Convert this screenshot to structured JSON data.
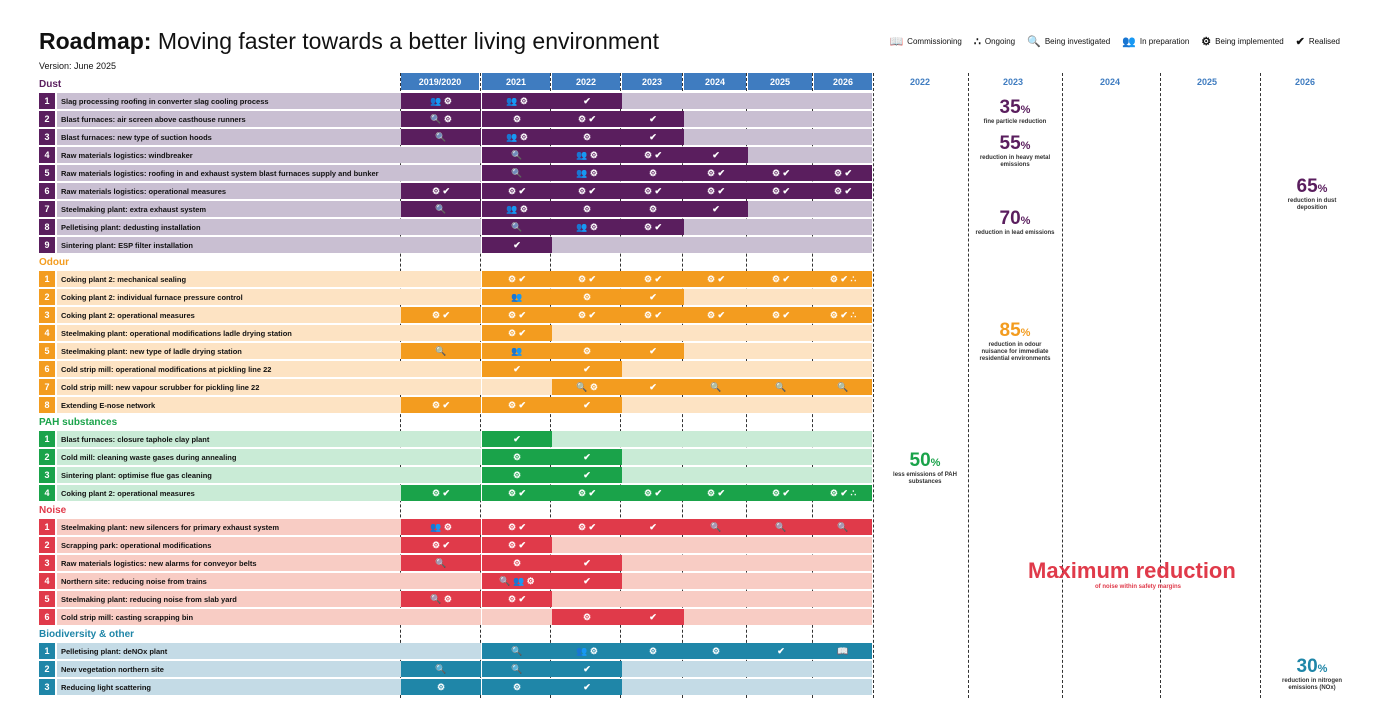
{
  "title_bold": "Roadmap:",
  "title_rest": " Moving faster towards a better living environment",
  "version": "Version: June 2025",
  "legend": [
    {
      "icon": "book-icon",
      "glyph": "📖",
      "label": "Commissioning"
    },
    {
      "icon": "ongoing-icon",
      "glyph": "∴",
      "label": "Ongoing"
    },
    {
      "icon": "search-icon",
      "glyph": "🔍",
      "label": "Being investigated"
    },
    {
      "icon": "people-icon",
      "glyph": "👥",
      "label": "In preparation"
    },
    {
      "icon": "gears-icon",
      "glyph": "⚙",
      "label": "Being implemented"
    },
    {
      "icon": "check-icon",
      "glyph": "✔",
      "label": "Realised"
    }
  ],
  "years": [
    "2019/2020",
    "2021",
    "2022",
    "2023",
    "2024",
    "2025",
    "2026"
  ],
  "right_years": [
    "2022",
    "2023",
    "2024",
    "2025",
    "2026"
  ],
  "sections": [
    {
      "name": "Dust",
      "color": "#5a1e5e",
      "light": "#c9bfd2",
      "items": [
        {
          "n": "1",
          "label": "Slag processing roofing in converter slag cooling process",
          "cells": [
            1,
            1,
            1,
            0,
            0,
            0,
            0
          ],
          "marks": [
            "👥 ⚙",
            "👥 ⚙",
            "✔",
            "",
            "",
            "",
            ""
          ]
        },
        {
          "n": "2",
          "label": "Blast furnaces: air screen above casthouse runners",
          "cells": [
            1,
            1,
            1,
            1,
            0,
            0,
            0
          ],
          "marks": [
            "🔍 ⚙",
            "⚙",
            "⚙ ✔",
            "✔",
            "",
            "",
            ""
          ]
        },
        {
          "n": "3",
          "label": "Blast furnaces: new type of suction hoods",
          "cells": [
            1,
            1,
            1,
            1,
            0,
            0,
            0
          ],
          "marks": [
            "🔍",
            "👥 ⚙",
            "⚙",
            "✔",
            "",
            "",
            ""
          ]
        },
        {
          "n": "4",
          "label": "Raw materials logistics: windbreaker",
          "cells": [
            0,
            1,
            1,
            1,
            1,
            0,
            0
          ],
          "marks": [
            "",
            "🔍",
            "👥 ⚙",
            "⚙ ✔",
            "✔",
            "",
            ""
          ]
        },
        {
          "n": "5",
          "label": "Raw materials logistics: roofing in and exhaust system blast furnaces supply and bunker",
          "cells": [
            0,
            1,
            1,
            1,
            1,
            1,
            1
          ],
          "marks": [
            "",
            "🔍",
            "👥 ⚙",
            "⚙",
            "⚙ ✔",
            "⚙ ✔",
            "⚙ ✔"
          ]
        },
        {
          "n": "6",
          "label": "Raw materials logistics: operational measures",
          "cells": [
            1,
            1,
            1,
            1,
            1,
            1,
            1
          ],
          "marks": [
            "⚙ ✔",
            "⚙ ✔",
            "⚙ ✔",
            "⚙ ✔",
            "⚙ ✔",
            "⚙ ✔",
            "⚙ ✔"
          ]
        },
        {
          "n": "7",
          "label": "Steelmaking plant: extra exhaust system",
          "cells": [
            1,
            1,
            1,
            1,
            1,
            0,
            0
          ],
          "marks": [
            "🔍",
            "👥 ⚙",
            "⚙",
            "⚙",
            "✔",
            "",
            ""
          ]
        },
        {
          "n": "8",
          "label": "Pelletising plant: dedusting installation",
          "cells": [
            0,
            1,
            1,
            1,
            0,
            0,
            0
          ],
          "marks": [
            "",
            "🔍",
            "👥 ⚙",
            "⚙ ✔",
            "",
            "",
            ""
          ]
        },
        {
          "n": "9",
          "label": "Sintering plant: ESP filter installation",
          "cells": [
            0,
            1,
            0,
            0,
            0,
            0,
            0
          ],
          "marks": [
            "",
            "✔",
            "",
            "",
            "",
            "",
            ""
          ]
        }
      ]
    },
    {
      "name": "Odour",
      "color": "#f39c1f",
      "light": "#fde3c3",
      "items": [
        {
          "n": "1",
          "label": "Coking plant 2: mechanical sealing",
          "cells": [
            0,
            1,
            1,
            1,
            1,
            1,
            1
          ],
          "marks": [
            "",
            "⚙ ✔",
            "⚙ ✔",
            "⚙ ✔",
            "⚙ ✔",
            "⚙ ✔",
            "⚙ ✔ ∴"
          ]
        },
        {
          "n": "2",
          "label": "Coking plant 2: individual furnace pressure control",
          "cells": [
            0,
            1,
            1,
            1,
            0,
            0,
            0
          ],
          "marks": [
            "",
            "👥",
            "⚙",
            "✔",
            "",
            "",
            ""
          ]
        },
        {
          "n": "3",
          "label": "Coking plant 2: operational measures",
          "cells": [
            1,
            1,
            1,
            1,
            1,
            1,
            1
          ],
          "marks": [
            "⚙ ✔",
            "⚙ ✔",
            "⚙ ✔",
            "⚙ ✔",
            "⚙ ✔",
            "⚙ ✔",
            "⚙ ✔ ∴"
          ]
        },
        {
          "n": "4",
          "label": "Steelmaking plant: operational modifications ladle drying station",
          "cells": [
            0,
            1,
            0,
            0,
            0,
            0,
            0
          ],
          "marks": [
            "",
            "⚙ ✔",
            "",
            "",
            "",
            "",
            ""
          ]
        },
        {
          "n": "5",
          "label": "Steelmaking plant: new type of ladle drying station",
          "cells": [
            1,
            1,
            1,
            1,
            0,
            0,
            0
          ],
          "marks": [
            "🔍",
            "👥",
            "⚙",
            "✔",
            "",
            "",
            ""
          ]
        },
        {
          "n": "6",
          "label": "Cold strip mill: operational modifications at pickling line 22",
          "cells": [
            0,
            1,
            1,
            0,
            0,
            0,
            0
          ],
          "marks": [
            "",
            "✔",
            "✔",
            "",
            "",
            "",
            ""
          ]
        },
        {
          "n": "7",
          "label": "Cold strip mill: new vapour scrubber for pickling line 22",
          "cells": [
            0,
            0,
            1,
            1,
            1,
            1,
            1
          ],
          "marks": [
            "",
            "",
            "🔍 ⚙",
            "✔",
            "🔍",
            "🔍",
            "🔍"
          ]
        },
        {
          "n": "8",
          "label": "Extending E-nose network",
          "cells": [
            1,
            1,
            1,
            0,
            0,
            0,
            0
          ],
          "marks": [
            "⚙ ✔",
            "⚙ ✔",
            "✔",
            "",
            "",
            "",
            ""
          ]
        }
      ]
    },
    {
      "name": "PAH substances",
      "color": "#1aa34a",
      "light": "#c9ebd6",
      "items": [
        {
          "n": "1",
          "label": "Blast furnaces: closure taphole clay plant",
          "cells": [
            0,
            1,
            0,
            0,
            0,
            0,
            0
          ],
          "marks": [
            "",
            "✔",
            "",
            "",
            "",
            "",
            ""
          ]
        },
        {
          "n": "2",
          "label": "Cold mill: cleaning waste gases during annealing",
          "cells": [
            0,
            1,
            1,
            0,
            0,
            0,
            0
          ],
          "marks": [
            "",
            "⚙",
            "✔",
            "",
            "",
            "",
            ""
          ]
        },
        {
          "n": "3",
          "label": "Sintering plant: optimise flue gas cleaning",
          "cells": [
            0,
            1,
            1,
            0,
            0,
            0,
            0
          ],
          "marks": [
            "",
            "⚙",
            "✔",
            "",
            "",
            "",
            ""
          ]
        },
        {
          "n": "4",
          "label": "Coking plant 2: operational measures",
          "cells": [
            1,
            1,
            1,
            1,
            1,
            1,
            1
          ],
          "marks": [
            "⚙ ✔",
            "⚙ ✔",
            "⚙ ✔",
            "⚙ ✔",
            "⚙ ✔",
            "⚙ ✔",
            "⚙ ✔ ∴"
          ]
        }
      ]
    },
    {
      "name": "Noise",
      "color": "#e03a4a",
      "light": "#f8ccc4",
      "items": [
        {
          "n": "1",
          "label": "Steelmaking plant: new silencers for primary exhaust system",
          "cells": [
            1,
            1,
            1,
            1,
            1,
            1,
            1
          ],
          "marks": [
            "👥 ⚙",
            "⚙ ✔",
            "⚙ ✔",
            "✔",
            "🔍",
            "🔍",
            "🔍"
          ]
        },
        {
          "n": "2",
          "label": "Scrapping park: operational modifications",
          "cells": [
            1,
            1,
            0,
            0,
            0,
            0,
            0
          ],
          "marks": [
            "⚙ ✔",
            "⚙ ✔",
            "",
            "",
            "",
            "",
            ""
          ]
        },
        {
          "n": "3",
          "label": "Raw materials logistics: new alarms for conveyor belts",
          "cells": [
            1,
            1,
            1,
            0,
            0,
            0,
            0
          ],
          "marks": [
            "🔍",
            "⚙",
            "✔",
            "",
            "",
            "",
            ""
          ]
        },
        {
          "n": "4",
          "label": "Northern site: reducing noise from trains",
          "cells": [
            0,
            1,
            1,
            0,
            0,
            0,
            0
          ],
          "marks": [
            "",
            "🔍 👥 ⚙",
            "✔",
            "",
            "",
            "",
            ""
          ]
        },
        {
          "n": "5",
          "label": "Steelmaking plant: reducing noise from slab yard",
          "cells": [
            1,
            1,
            0,
            0,
            0,
            0,
            0
          ],
          "marks": [
            "🔍 ⚙",
            "⚙ ✔",
            "",
            "",
            "",
            "",
            ""
          ]
        },
        {
          "n": "6",
          "label": "Cold strip mill: casting scrapping bin",
          "cells": [
            0,
            0,
            1,
            1,
            0,
            0,
            0
          ],
          "marks": [
            "",
            "",
            "⚙",
            "✔",
            "",
            "",
            ""
          ]
        }
      ]
    },
    {
      "name": "Biodiversity & other",
      "color": "#1f86a8",
      "light": "#c4dbe6",
      "items": [
        {
          "n": "1",
          "label": "Pelletising plant: deNOx plant",
          "cells": [
            0,
            1,
            1,
            1,
            1,
            1,
            1
          ],
          "marks": [
            "",
            "🔍",
            "👥 ⚙",
            "⚙",
            "⚙",
            "✔",
            "📖"
          ]
        },
        {
          "n": "2",
          "label": "New vegetation northern site",
          "cells": [
            1,
            1,
            1,
            0,
            0,
            0,
            0
          ],
          "marks": [
            "🔍",
            "🔍",
            "✔",
            "",
            "",
            "",
            ""
          ]
        },
        {
          "n": "3",
          "label": "Reducing light scattering",
          "cells": [
            1,
            1,
            1,
            0,
            0,
            0,
            0
          ],
          "marks": [
            "⚙",
            "⚙",
            "✔",
            "",
            "",
            "",
            ""
          ]
        }
      ]
    }
  ],
  "stats": [
    {
      "big": "35",
      "pct": "%",
      "desc": "fine particle reduction",
      "color": "#5a1e5e"
    },
    {
      "big": "55",
      "pct": "%",
      "desc": "reduction in heavy metal emissions",
      "color": "#5a1e5e"
    },
    {
      "big": "70",
      "pct": "%",
      "desc": "reduction in lead emissions",
      "color": "#5a1e5e"
    },
    {
      "big": "65",
      "pct": "%",
      "desc": "reduction in dust deposition",
      "color": "#5a1e5e"
    },
    {
      "big": "85",
      "pct": "%",
      "desc": "reduction in odour nuisance for immediate residential environments",
      "color": "#f39c1f"
    },
    {
      "big": "50",
      "pct": "%",
      "desc": "less emissions of PAH substances",
      "color": "#1aa34a"
    },
    {
      "big": "30",
      "pct": "%",
      "desc": "reduction in nitrogen emissions (NOx)",
      "color": "#1f86a8"
    }
  ],
  "max_reduction": "Maximum reduction",
  "max_reduction_sub": "of noise within safety margins"
}
